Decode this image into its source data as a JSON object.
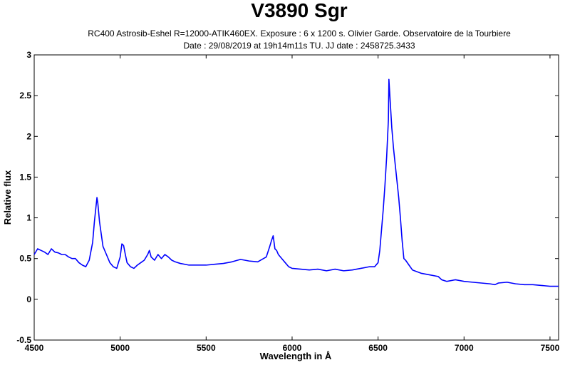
{
  "chart_data": {
    "type": "line",
    "title": "V3890 Sgr",
    "subtitle_line1": "RC400 Astrosib-Eshel R=12000-ATIK460EX. Exposure : 6 x 1200 s. Olivier Garde. Observatoire de la Tourbiere",
    "subtitle_line2": "Date : 29/08/2019 at 19h14m11s TU. JJ date : 2458725.3433",
    "xlabel": "Wavelength in Å",
    "ylabel": "Relative flux",
    "xlim": [
      4500,
      7550
    ],
    "ylim": [
      -0.5,
      3
    ],
    "xticks": [
      4500,
      5000,
      5500,
      6000,
      6500,
      7000,
      7500
    ],
    "yticks": [
      -0.5,
      0,
      0.5,
      1,
      1.5,
      2,
      2.5,
      3
    ],
    "grid": false,
    "series": [
      {
        "color": "#0000ff",
        "x": [
          4500,
          4520,
          4540,
          4560,
          4580,
          4600,
          4620,
          4640,
          4660,
          4680,
          4700,
          4720,
          4740,
          4760,
          4780,
          4800,
          4820,
          4840,
          4850,
          4860,
          4865,
          4870,
          4880,
          4900,
          4920,
          4940,
          4960,
          4980,
          5000,
          5010,
          5020,
          5030,
          5040,
          5060,
          5080,
          5100,
          5120,
          5140,
          5160,
          5170,
          5180,
          5200,
          5220,
          5240,
          5260,
          5280,
          5300,
          5320,
          5350,
          5400,
          5450,
          5500,
          5550,
          5600,
          5650,
          5700,
          5750,
          5800,
          5850,
          5870,
          5880,
          5890,
          5895,
          5900,
          5910,
          5920,
          5940,
          5960,
          5980,
          6000,
          6050,
          6100,
          6150,
          6200,
          6250,
          6300,
          6350,
          6400,
          6450,
          6480,
          6500,
          6510,
          6520,
          6530,
          6540,
          6550,
          6560,
          6563,
          6570,
          6580,
          6590,
          6600,
          6610,
          6620,
          6630,
          6640,
          6650,
          6660,
          6680,
          6700,
          6750,
          6800,
          6850,
          6870,
          6900,
          6950,
          7000,
          7050,
          7100,
          7150,
          7180,
          7200,
          7250,
          7300,
          7350,
          7400,
          7450,
          7500,
          7550
        ],
        "y": [
          0.55,
          0.62,
          0.6,
          0.58,
          0.55,
          0.62,
          0.58,
          0.57,
          0.55,
          0.55,
          0.52,
          0.5,
          0.5,
          0.45,
          0.42,
          0.4,
          0.48,
          0.7,
          0.95,
          1.15,
          1.25,
          1.18,
          0.95,
          0.65,
          0.55,
          0.45,
          0.4,
          0.38,
          0.52,
          0.68,
          0.66,
          0.55,
          0.45,
          0.4,
          0.38,
          0.42,
          0.45,
          0.48,
          0.55,
          0.6,
          0.52,
          0.48,
          0.55,
          0.5,
          0.55,
          0.52,
          0.48,
          0.46,
          0.44,
          0.42,
          0.42,
          0.42,
          0.43,
          0.44,
          0.46,
          0.49,
          0.47,
          0.46,
          0.52,
          0.65,
          0.72,
          0.78,
          0.7,
          0.62,
          0.6,
          0.55,
          0.5,
          0.45,
          0.4,
          0.38,
          0.37,
          0.36,
          0.37,
          0.35,
          0.37,
          0.35,
          0.36,
          0.38,
          0.4,
          0.4,
          0.45,
          0.6,
          0.85,
          1.1,
          1.4,
          1.75,
          2.2,
          2.7,
          2.45,
          2.1,
          1.85,
          1.65,
          1.45,
          1.25,
          1.0,
          0.72,
          0.5,
          0.48,
          0.42,
          0.36,
          0.32,
          0.3,
          0.28,
          0.24,
          0.22,
          0.24,
          0.22,
          0.21,
          0.2,
          0.19,
          0.18,
          0.2,
          0.21,
          0.19,
          0.18,
          0.18,
          0.17,
          0.16,
          0.16
        ]
      }
    ]
  }
}
